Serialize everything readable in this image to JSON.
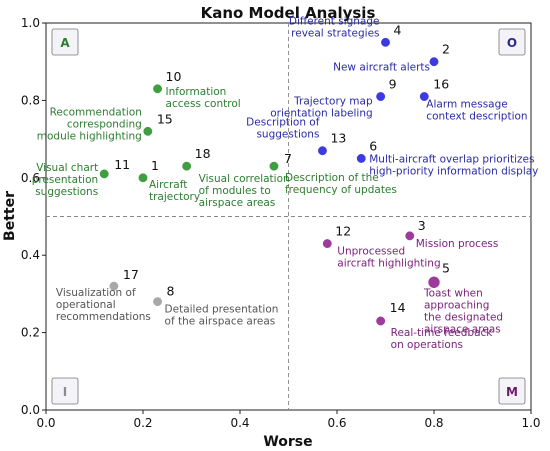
{
  "chart_data": {
    "type": "scatter",
    "title": "Kano Model Analysis",
    "xlabel": "Worse",
    "ylabel": "Better",
    "xlim": [
      0.0,
      1.0
    ],
    "ylim": [
      0.0,
      1.0
    ],
    "xticks": [
      "0.0",
      "0.2",
      "0.4",
      "0.6",
      "0.8",
      "1.0"
    ],
    "yticks": [
      "0.0",
      "0.2",
      "0.4",
      "0.6",
      "0.8",
      "1.0"
    ],
    "threshold_x": 0.5,
    "threshold_y": 0.5,
    "grid": false,
    "quadrants": [
      {
        "letter": "A",
        "position": "top-left",
        "color": "#2e7d32"
      },
      {
        "letter": "O",
        "position": "top-right",
        "color": "#2a2a8c"
      },
      {
        "letter": "I",
        "position": "bottom-left",
        "color": "#8a8a8a"
      },
      {
        "letter": "M",
        "position": "bottom-right",
        "color": "#6a1b6a"
      }
    ],
    "category_colors": {
      "A": "#3f9e3f",
      "O": "#3b3be0",
      "I": "#a8a8a8",
      "M": "#9c3b9c"
    },
    "label_colors": {
      "A": "#2e7d32",
      "O": "#2a2aa8",
      "I": "#555555",
      "M": "#7a1f7a"
    },
    "points": [
      {
        "id": "1",
        "x": 0.2,
        "y": 0.6,
        "category": "A",
        "label": [
          "Aircraft",
          "trajectory"
        ]
      },
      {
        "id": "2",
        "x": 0.8,
        "y": 0.9,
        "category": "O",
        "label": [
          "New aircraft alerts"
        ]
      },
      {
        "id": "3",
        "x": 0.75,
        "y": 0.45,
        "category": "M",
        "label": [
          "Mission process"
        ]
      },
      {
        "id": "4",
        "x": 0.7,
        "y": 0.95,
        "category": "O",
        "label": [
          "Different signage",
          "reveal strategies"
        ]
      },
      {
        "id": "5",
        "x": 0.8,
        "y": 0.33,
        "category": "M",
        "label": [
          "Toast when",
          "approaching",
          "the designated",
          "airspace areas"
        ]
      },
      {
        "id": "6",
        "x": 0.65,
        "y": 0.65,
        "category": "O",
        "label": [
          "Multi-aircraft overlap prioritizes",
          "high-priority information display"
        ]
      },
      {
        "id": "7",
        "x": 0.47,
        "y": 0.63,
        "category": "A",
        "label": [
          "Description of the",
          "frequency of updates"
        ]
      },
      {
        "id": "8",
        "x": 0.23,
        "y": 0.28,
        "category": "I",
        "label": [
          "Detailed presentation",
          "of the airspace areas"
        ]
      },
      {
        "id": "9",
        "x": 0.69,
        "y": 0.81,
        "category": "O",
        "label": [
          "Trajectory map",
          "orientation labeling"
        ]
      },
      {
        "id": "10",
        "x": 0.23,
        "y": 0.83,
        "category": "A",
        "label": [
          "Information",
          "access control"
        ]
      },
      {
        "id": "11",
        "x": 0.12,
        "y": 0.61,
        "category": "A",
        "label": [
          "Visual chart",
          "presentation",
          "suggestions"
        ]
      },
      {
        "id": "12",
        "x": 0.58,
        "y": 0.43,
        "category": "M",
        "label": [
          "Unprocessed",
          "aircraft highlighting"
        ]
      },
      {
        "id": "13",
        "x": 0.57,
        "y": 0.67,
        "category": "O",
        "label": [
          "Description of",
          "suggestions"
        ]
      },
      {
        "id": "14",
        "x": 0.69,
        "y": 0.23,
        "category": "M",
        "label": [
          "Real-time feedback",
          "on operations"
        ]
      },
      {
        "id": "15",
        "x": 0.21,
        "y": 0.72,
        "category": "A",
        "label": [
          "Recommendation",
          "corresponding",
          "module highlighting"
        ]
      },
      {
        "id": "16",
        "x": 0.78,
        "y": 0.81,
        "category": "O",
        "label": [
          "Alarm message",
          "context description"
        ]
      },
      {
        "id": "17",
        "x": 0.14,
        "y": 0.32,
        "category": "I",
        "label": [
          "Visualization of",
          "operational",
          "recommendations"
        ]
      },
      {
        "id": "18",
        "x": 0.29,
        "y": 0.63,
        "category": "A",
        "label": [
          "Visual correlation",
          "of modules to",
          "airspace areas"
        ]
      }
    ]
  }
}
